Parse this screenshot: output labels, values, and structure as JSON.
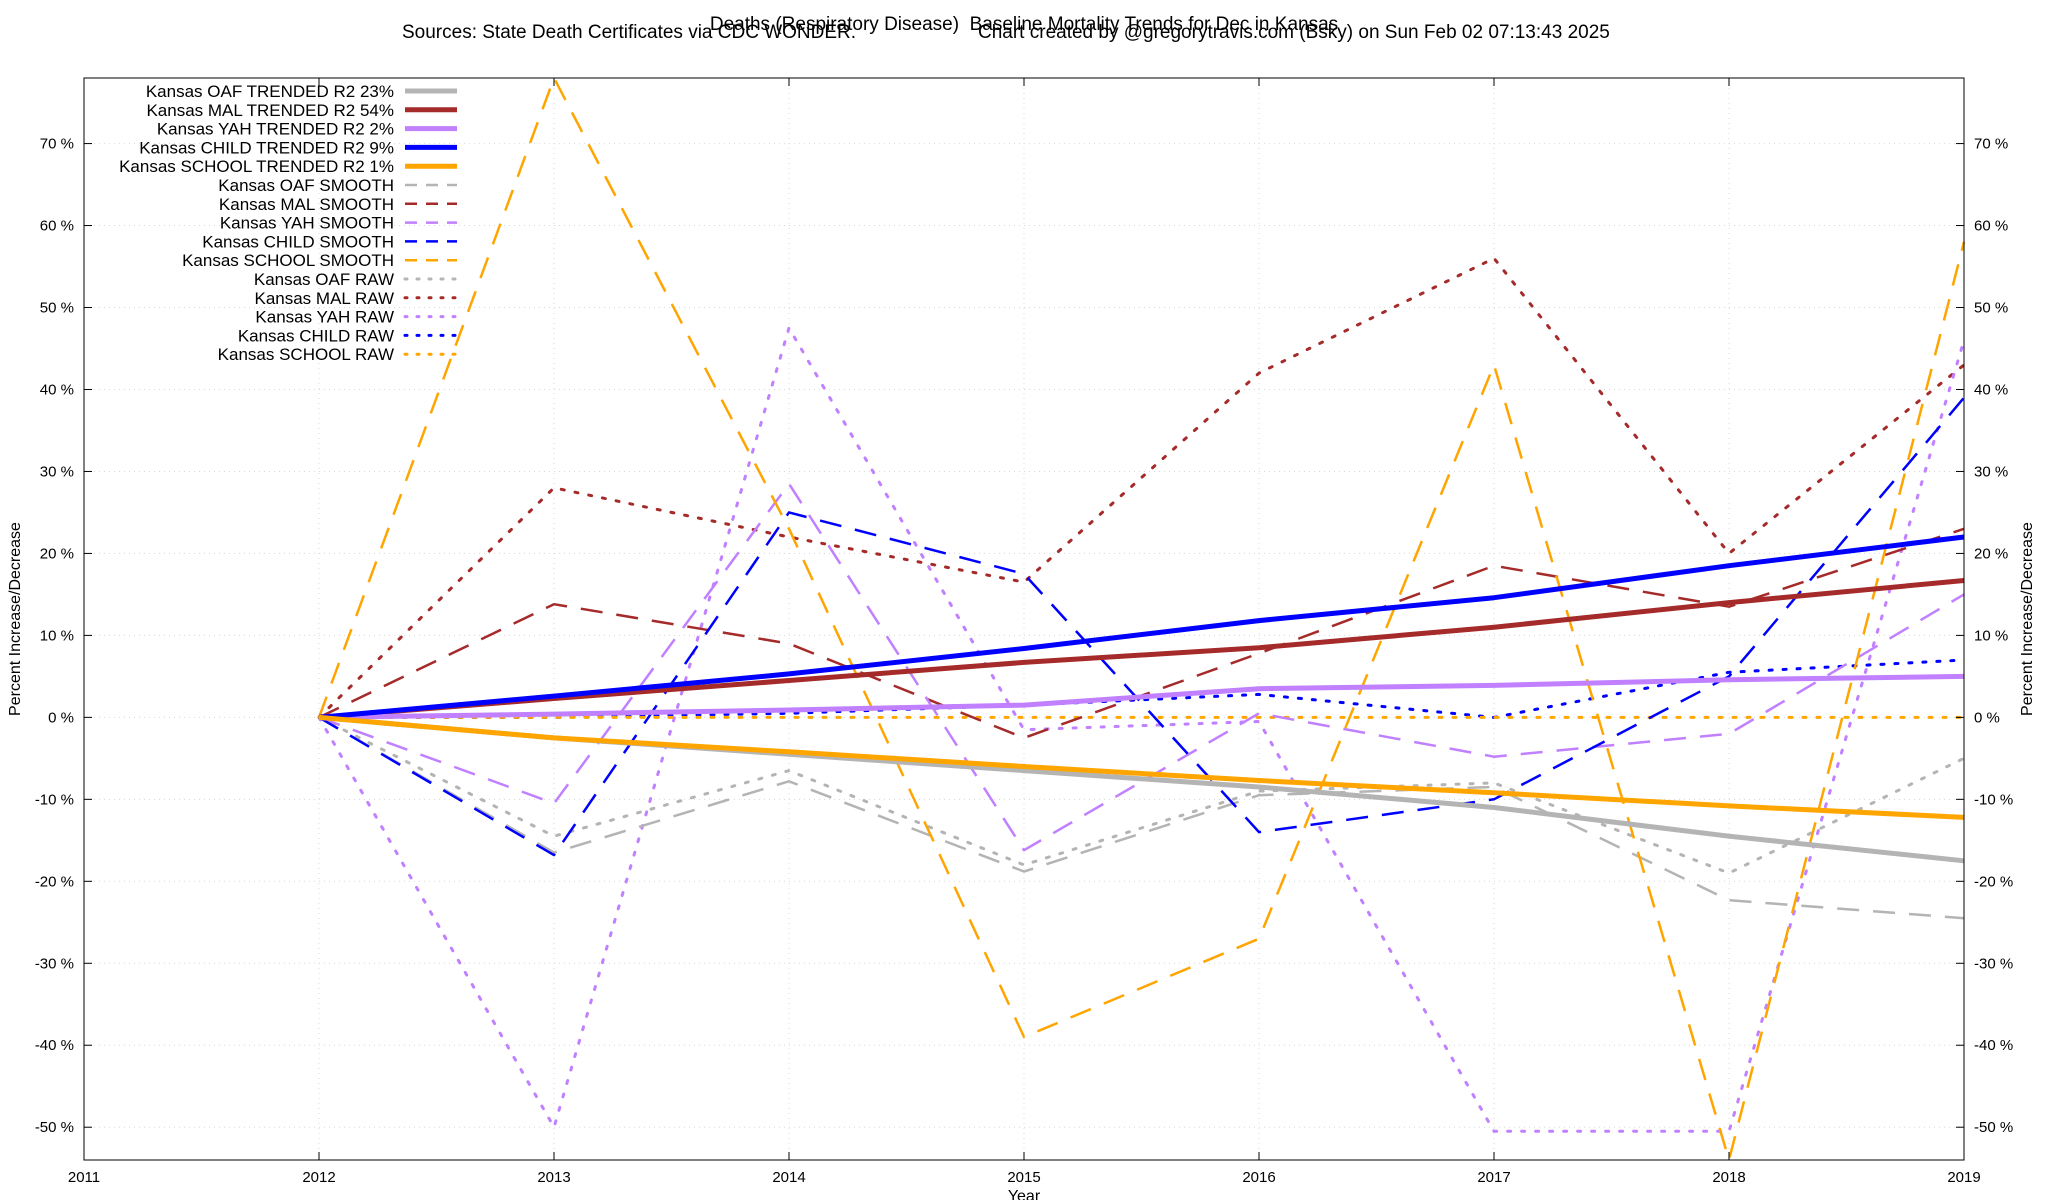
{
  "chart_data": {
    "type": "line",
    "title": "Deaths (Respiratory Disease)  Baseline Mortality Trends for Dec in Kansas",
    "subtitle_left": "Sources: State Death Certificates via CDC WONDER.",
    "subtitle_right": "Chart created by @gregorytravis.com (Bsky) on Sun Feb 02 07:13:43 2025",
    "xlabel": "Year",
    "ylabel": "Percent Increase/Decrease",
    "y2label": "Percent Increase/Decrease",
    "xlim": [
      2011,
      2019
    ],
    "ylim": [
      -54,
      78
    ],
    "xticks": [
      "2011",
      "2012",
      "2013",
      "2014",
      "2015",
      "2016",
      "2017",
      "2018",
      "2019"
    ],
    "yticks": [
      "-50 %",
      "-40 %",
      "-30 %",
      "-20 %",
      "-10 %",
      "0 %",
      "10 %",
      "20 %",
      "30 %",
      "40 %",
      "50 %",
      "60 %",
      "70 %"
    ],
    "ytick_values": [
      -50,
      -40,
      -30,
      -20,
      -10,
      0,
      10,
      20,
      30,
      40,
      50,
      60,
      70
    ],
    "grid": true,
    "legend_position": "top-left",
    "x": [
      2012,
      2013,
      2014,
      2015,
      2016,
      2017,
      2018,
      2019
    ],
    "series": [
      {
        "name": "Kansas OAF TRENDED R2  23%",
        "style": "trend",
        "color": "#b4b4b4",
        "values": [
          0,
          -2.5,
          -4.5,
          -6.5,
          -8.5,
          -11,
          -14.5,
          -17.5
        ]
      },
      {
        "name": "Kansas MAL TRENDED R2  54%",
        "style": "trend",
        "color": "#a52a2a",
        "values": [
          0,
          2.3,
          4.5,
          6.7,
          8.5,
          11,
          14,
          16.7
        ]
      },
      {
        "name": "Kansas YAH TRENDED R2   2%",
        "style": "trend",
        "color": "#c080ff",
        "values": [
          0,
          0.4,
          0.9,
          1.5,
          3.5,
          3.9,
          4.6,
          5.0
        ]
      },
      {
        "name": "Kansas CHILD TRENDED R2   9%",
        "style": "trend",
        "color": "#0000ff",
        "values": [
          0,
          2.6,
          5.3,
          8.4,
          11.8,
          14.6,
          18.5,
          22
        ]
      },
      {
        "name": "Kansas SCHOOL TRENDED R2   1%",
        "style": "trend",
        "color": "#ffa500",
        "values": [
          0,
          -2.5,
          -4.2,
          -6,
          -7.7,
          -9.2,
          -10.8,
          -12.2
        ]
      },
      {
        "name": "Kansas OAF SMOOTH",
        "style": "smooth",
        "color": "#b4b4b4",
        "values": [
          0,
          -16.5,
          -7.8,
          -18.8,
          -9.5,
          -8.5,
          -22.3,
          -24.5
        ]
      },
      {
        "name": "Kansas MAL SMOOTH",
        "style": "smooth",
        "color": "#a52a2a",
        "values": [
          0,
          13.8,
          9,
          -2.5,
          7.8,
          18.5,
          13.5,
          23
        ]
      },
      {
        "name": "Kansas YAH SMOOTH",
        "style": "smooth",
        "color": "#c080ff",
        "values": [
          0,
          -10.5,
          28.5,
          -16.2,
          0.5,
          -4.8,
          -2,
          15
        ]
      },
      {
        "name": "Kansas CHILD SMOOTH",
        "style": "smooth",
        "color": "#0000ff",
        "values": [
          0,
          -16.8,
          25,
          17.5,
          -14,
          -10,
          5,
          39
        ]
      },
      {
        "name": "Kansas SCHOOL SMOOTH",
        "style": "smooth",
        "color": "#ffa500",
        "values": [
          0,
          78,
          23,
          -39,
          -27,
          43,
          -54,
          58
        ]
      },
      {
        "name": "Kansas OAF RAW",
        "style": "raw",
        "color": "#b4b4b4",
        "values": [
          0,
          -14.5,
          -6.5,
          -18,
          -9,
          -8,
          -19,
          -5
        ]
      },
      {
        "name": "Kansas MAL RAW",
        "style": "raw",
        "color": "#a52a2a",
        "values": [
          0,
          28,
          22,
          16.5,
          42,
          56,
          20,
          43
        ]
      },
      {
        "name": "Kansas YAH RAW",
        "style": "raw",
        "color": "#c080ff",
        "values": [
          0,
          -50,
          47.5,
          -1.5,
          -0.5,
          -50.5,
          -50.5,
          46
        ]
      },
      {
        "name": "Kansas CHILD RAW",
        "style": "raw",
        "color": "#0000ff",
        "values": [
          0,
          0,
          0.5,
          1.5,
          2.8,
          0,
          5.5,
          7
        ]
      },
      {
        "name": "Kansas SCHOOL RAW",
        "style": "raw",
        "color": "#ffa500",
        "values": [
          0,
          0,
          0,
          0,
          0,
          0,
          0,
          0
        ]
      }
    ]
  }
}
